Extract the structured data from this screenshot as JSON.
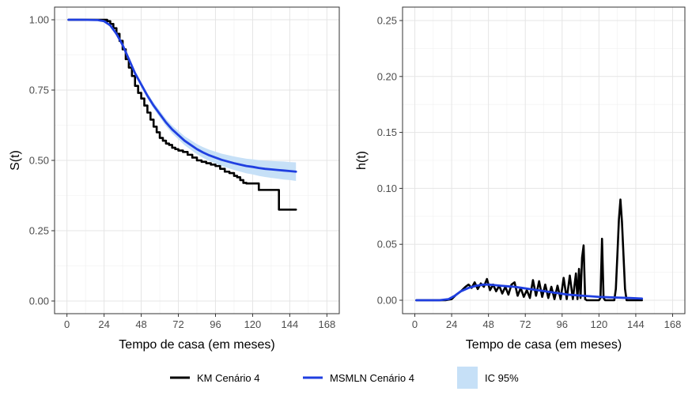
{
  "chart_data": [
    {
      "type": "line",
      "xlabel": "Tempo de casa (em meses)",
      "ylabel": "S(t)",
      "xlim": [
        -8,
        176
      ],
      "ylim": [
        -0.045,
        1.045
      ],
      "xticks": [
        0,
        24,
        48,
        72,
        96,
        120,
        144,
        168
      ],
      "xtick_labels": [
        "0",
        "24",
        "48",
        "72",
        "96",
        "120",
        "144",
        "168"
      ],
      "yticks": [
        0,
        0.25,
        0.5,
        0.75,
        1.0
      ],
      "ytick_labels": [
        "0.00",
        "0.25",
        "0.50",
        "0.75",
        "1.00"
      ],
      "grid": true,
      "series": [
        {
          "name": "KM Cenário 4",
          "color": "#000000",
          "step": true,
          "x": [
            1,
            12,
            22,
            26,
            28,
            30,
            32,
            34,
            36,
            38,
            40,
            42,
            44,
            46,
            48,
            50,
            52,
            54,
            56,
            58,
            60,
            62,
            64,
            66,
            68,
            70,
            72,
            75,
            78,
            81,
            84,
            87,
            90,
            93,
            96,
            99,
            102,
            105,
            108,
            110,
            112,
            114,
            116,
            121,
            124,
            131,
            136,
            137,
            143,
            148
          ],
          "y": [
            1.0,
            1.0,
            1.0,
            0.995,
            0.985,
            0.97,
            0.95,
            0.925,
            0.895,
            0.86,
            0.83,
            0.8,
            0.765,
            0.74,
            0.72,
            0.695,
            0.67,
            0.645,
            0.62,
            0.6,
            0.58,
            0.57,
            0.56,
            0.555,
            0.545,
            0.54,
            0.535,
            0.53,
            0.52,
            0.51,
            0.5,
            0.495,
            0.49,
            0.485,
            0.48,
            0.47,
            0.46,
            0.455,
            0.445,
            0.44,
            0.43,
            0.42,
            0.418,
            0.418,
            0.395,
            0.395,
            0.395,
            0.325,
            0.325,
            0.325
          ]
        },
        {
          "name": "MSMLN Cenário 4",
          "color": "#1f3fe0",
          "x": [
            1,
            10,
            20,
            24,
            28,
            32,
            36,
            40,
            44,
            48,
            52,
            56,
            60,
            64,
            68,
            72,
            76,
            80,
            84,
            88,
            92,
            96,
            100,
            104,
            108,
            112,
            116,
            120,
            124,
            128,
            132,
            136,
            140,
            144,
            148
          ],
          "y": [
            1.0,
            1.0,
            0.999,
            0.995,
            0.98,
            0.95,
            0.91,
            0.86,
            0.81,
            0.77,
            0.73,
            0.695,
            0.665,
            0.635,
            0.61,
            0.59,
            0.57,
            0.555,
            0.54,
            0.528,
            0.518,
            0.51,
            0.502,
            0.496,
            0.49,
            0.485,
            0.48,
            0.477,
            0.473,
            0.47,
            0.468,
            0.466,
            0.464,
            0.462,
            0.46
          ]
        }
      ],
      "ribbon": {
        "name": "IC 95%",
        "color": "#c6e0f7",
        "x": [
          1,
          20,
          24,
          28,
          32,
          36,
          40,
          44,
          48,
          52,
          56,
          60,
          64,
          68,
          72,
          76,
          80,
          84,
          88,
          92,
          96,
          100,
          104,
          108,
          112,
          116,
          120,
          124,
          128,
          132,
          136,
          140,
          144,
          148
        ],
        "lower": [
          1.0,
          0.998,
          0.993,
          0.976,
          0.944,
          0.903,
          0.852,
          0.801,
          0.761,
          0.72,
          0.684,
          0.653,
          0.622,
          0.596,
          0.575,
          0.554,
          0.538,
          0.522,
          0.509,
          0.498,
          0.489,
          0.48,
          0.473,
          0.466,
          0.46,
          0.454,
          0.45,
          0.445,
          0.441,
          0.438,
          0.435,
          0.432,
          0.43,
          0.427
        ],
        "upper": [
          1.0,
          1.0,
          0.997,
          0.984,
          0.956,
          0.917,
          0.868,
          0.819,
          0.779,
          0.74,
          0.706,
          0.677,
          0.648,
          0.624,
          0.605,
          0.586,
          0.572,
          0.558,
          0.547,
          0.538,
          0.531,
          0.524,
          0.519,
          0.514,
          0.51,
          0.506,
          0.504,
          0.501,
          0.499,
          0.498,
          0.497,
          0.496,
          0.494,
          0.493
        ]
      }
    },
    {
      "type": "line",
      "xlabel": "Tempo de casa (em meses)",
      "ylabel": "h(t)",
      "xlim": [
        -8,
        176
      ],
      "ylim": [
        -0.012,
        0.262
      ],
      "xticks": [
        0,
        24,
        48,
        72,
        96,
        120,
        144,
        168
      ],
      "xtick_labels": [
        "0",
        "24",
        "48",
        "72",
        "96",
        "120",
        "144",
        "168"
      ],
      "yticks": [
        0,
        0.05,
        0.1,
        0.15,
        0.2,
        0.25
      ],
      "ytick_labels": [
        "0.00",
        "0.05",
        "0.10",
        "0.15",
        "0.20",
        "0.25"
      ],
      "grid": true,
      "series": [
        {
          "name": "KM Cenário 4",
          "color": "#000000",
          "x": [
            1,
            20,
            24,
            27,
            30,
            33,
            35,
            37,
            39,
            41,
            43,
            45,
            47,
            49,
            51,
            53,
            55,
            57,
            59,
            61,
            63,
            65,
            67,
            69,
            71,
            73,
            75,
            77,
            79,
            81,
            83,
            85,
            87,
            89,
            91,
            93,
            95,
            97,
            99,
            101,
            103,
            105,
            106,
            107,
            108,
            109,
            110,
            111,
            112,
            114,
            116,
            118,
            120,
            121,
            122,
            123,
            124,
            125,
            126,
            128,
            130,
            131,
            132,
            133,
            134,
            135,
            136,
            137,
            138,
            140,
            145,
            148
          ],
          "y": [
            0.0,
            0.0,
            0.001,
            0.005,
            0.008,
            0.012,
            0.014,
            0.011,
            0.016,
            0.01,
            0.015,
            0.012,
            0.019,
            0.009,
            0.014,
            0.008,
            0.013,
            0.006,
            0.012,
            0.005,
            0.014,
            0.016,
            0.004,
            0.011,
            0.003,
            0.009,
            0.002,
            0.018,
            0.004,
            0.017,
            0.003,
            0.014,
            0.002,
            0.012,
            0.001,
            0.013,
            0.001,
            0.02,
            0.001,
            0.022,
            0.001,
            0.024,
            0.001,
            0.028,
            0.002,
            0.038,
            0.049,
            0.001,
            0.0,
            0.0,
            0.0,
            0.0,
            0.0,
            0.002,
            0.055,
            0.002,
            0.0,
            0.0,
            0.0,
            0.0,
            0.0,
            0.01,
            0.04,
            0.072,
            0.09,
            0.07,
            0.04,
            0.01,
            0.0,
            0.0,
            0.0,
            0.0
          ]
        },
        {
          "name": "MSMLN Cenário 4",
          "color": "#1f3fe0",
          "x": [
            1,
            16,
            22,
            26,
            30,
            35,
            40,
            45,
            48,
            52,
            56,
            60,
            65,
            70,
            75,
            80,
            90,
            100,
            110,
            120,
            130,
            140,
            148
          ],
          "y": [
            0.0,
            0.0,
            0.001,
            0.004,
            0.008,
            0.011,
            0.013,
            0.014,
            0.014,
            0.0135,
            0.013,
            0.0125,
            0.012,
            0.011,
            0.01,
            0.009,
            0.007,
            0.005,
            0.004,
            0.003,
            0.0025,
            0.002,
            0.0015
          ]
        }
      ]
    }
  ],
  "legend": {
    "placement": "bottom",
    "items": [
      {
        "label": "KM Cenário 4",
        "kind": "line",
        "color": "#000000"
      },
      {
        "label": "MSMLN Cenário 4",
        "kind": "line",
        "color": "#1f3fe0"
      },
      {
        "label": "IC 95%",
        "kind": "fill",
        "color": "#c6e0f7"
      }
    ]
  }
}
